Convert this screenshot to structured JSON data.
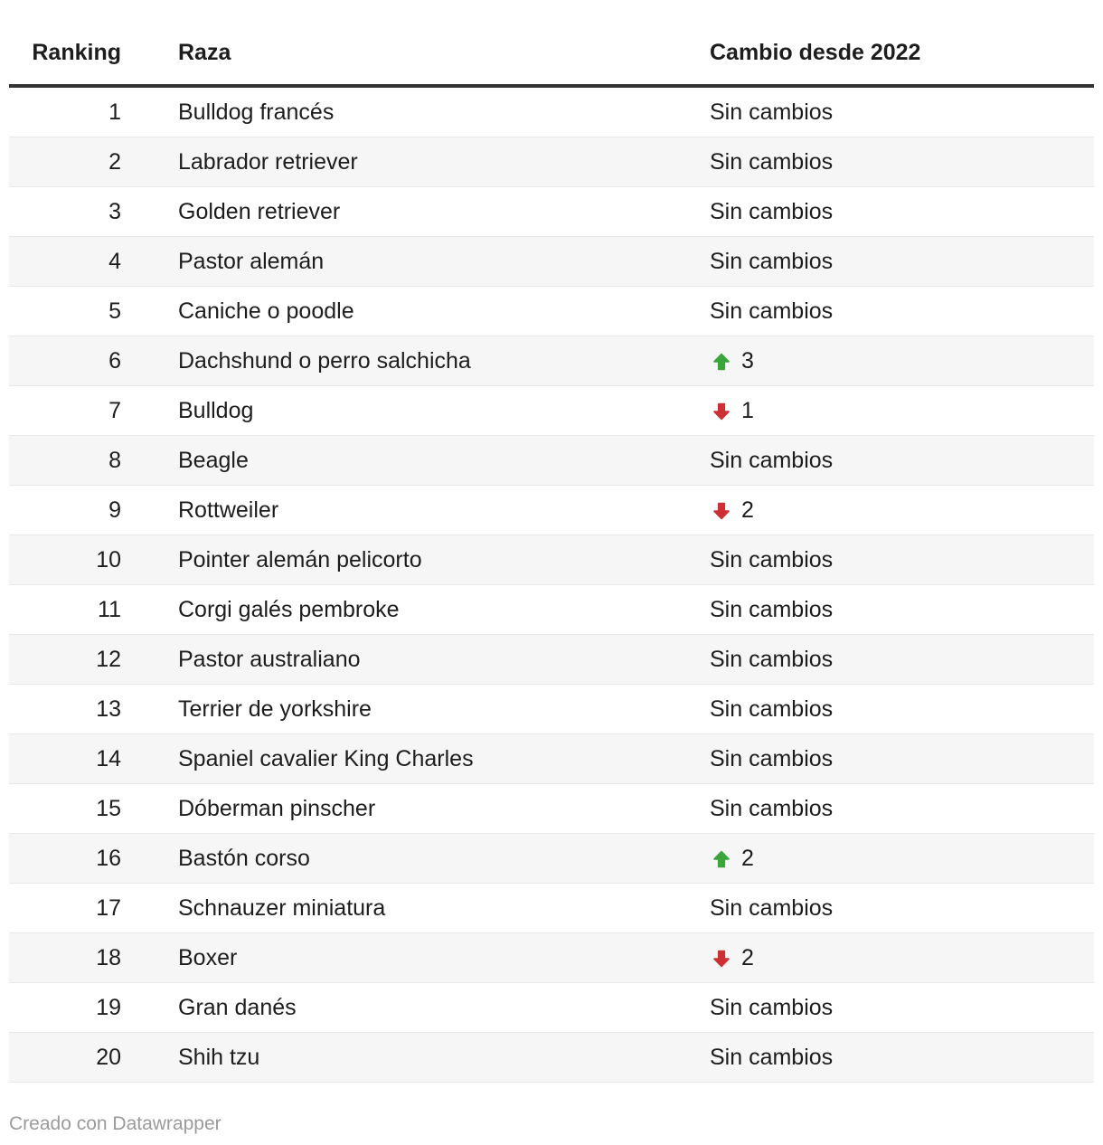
{
  "chart_data": {
    "type": "table",
    "columns": [
      "Ranking",
      "Raza",
      "Cambio desde 2022"
    ],
    "rows": [
      {
        "ranking": "1",
        "raza": "Bulldog francés",
        "cambio": "Sin cambios",
        "cambio_dir": "none"
      },
      {
        "ranking": "2",
        "raza": "Labrador retriever",
        "cambio": "Sin cambios",
        "cambio_dir": "none"
      },
      {
        "ranking": "3",
        "raza": "Golden retriever",
        "cambio": "Sin cambios",
        "cambio_dir": "none"
      },
      {
        "ranking": "4",
        "raza": "Pastor alemán",
        "cambio": "Sin cambios",
        "cambio_dir": "none"
      },
      {
        "ranking": "5",
        "raza": "Caniche o poodle",
        "cambio": "Sin cambios",
        "cambio_dir": "none"
      },
      {
        "ranking": "6",
        "raza": "Dachshund o perro salchicha",
        "cambio": "3",
        "cambio_dir": "up"
      },
      {
        "ranking": "7",
        "raza": "Bulldog",
        "cambio": "1",
        "cambio_dir": "down"
      },
      {
        "ranking": "8",
        "raza": "Beagle",
        "cambio": "Sin cambios",
        "cambio_dir": "none"
      },
      {
        "ranking": "9",
        "raza": "Rottweiler",
        "cambio": "2",
        "cambio_dir": "down"
      },
      {
        "ranking": "10",
        "raza": "Pointer alemán pelicorto",
        "cambio": "Sin cambios",
        "cambio_dir": "none"
      },
      {
        "ranking": "11",
        "raza": "Corgi galés pembroke",
        "cambio": "Sin cambios",
        "cambio_dir": "none"
      },
      {
        "ranking": "12",
        "raza": "Pastor australiano",
        "cambio": "Sin cambios",
        "cambio_dir": "none"
      },
      {
        "ranking": "13",
        "raza": "Terrier de yorkshire",
        "cambio": "Sin cambios",
        "cambio_dir": "none"
      },
      {
        "ranking": "14",
        "raza": "Spaniel cavalier King Charles",
        "cambio": "Sin cambios",
        "cambio_dir": "none"
      },
      {
        "ranking": "15",
        "raza": "Dóberman pinscher",
        "cambio": "Sin cambios",
        "cambio_dir": "none"
      },
      {
        "ranking": "16",
        "raza": "Bastón corso",
        "cambio": "2",
        "cambio_dir": "up"
      },
      {
        "ranking": "17",
        "raza": "Schnauzer miniatura",
        "cambio": "Sin cambios",
        "cambio_dir": "none"
      },
      {
        "ranking": "18",
        "raza": "Boxer",
        "cambio": "2",
        "cambio_dir": "down"
      },
      {
        "ranking": "19",
        "raza": "Gran danés",
        "cambio": "Sin cambios",
        "cambio_dir": "none"
      },
      {
        "ranking": "20",
        "raza": "Shih tzu",
        "cambio": "Sin cambios",
        "cambio_dir": "none"
      }
    ],
    "layout": {
      "zebra_striping": true,
      "column_alignment": [
        "right",
        "left",
        "left"
      ],
      "grid": "horizontal-only"
    }
  },
  "colors": {
    "increase_arrow": "#3aa53a",
    "decrease_arrow": "#cd3034",
    "header_rule": "#333333",
    "row_divider": "#e9e9e9",
    "zebra_row_bg": "#f6f6f6",
    "text": "#1d1d1d",
    "footer_text": "#9b9b9b"
  },
  "icons": {
    "up": "up-arrow-icon",
    "down": "down-arrow-icon"
  },
  "footer": {
    "credit": "Creado con Datawrapper"
  }
}
